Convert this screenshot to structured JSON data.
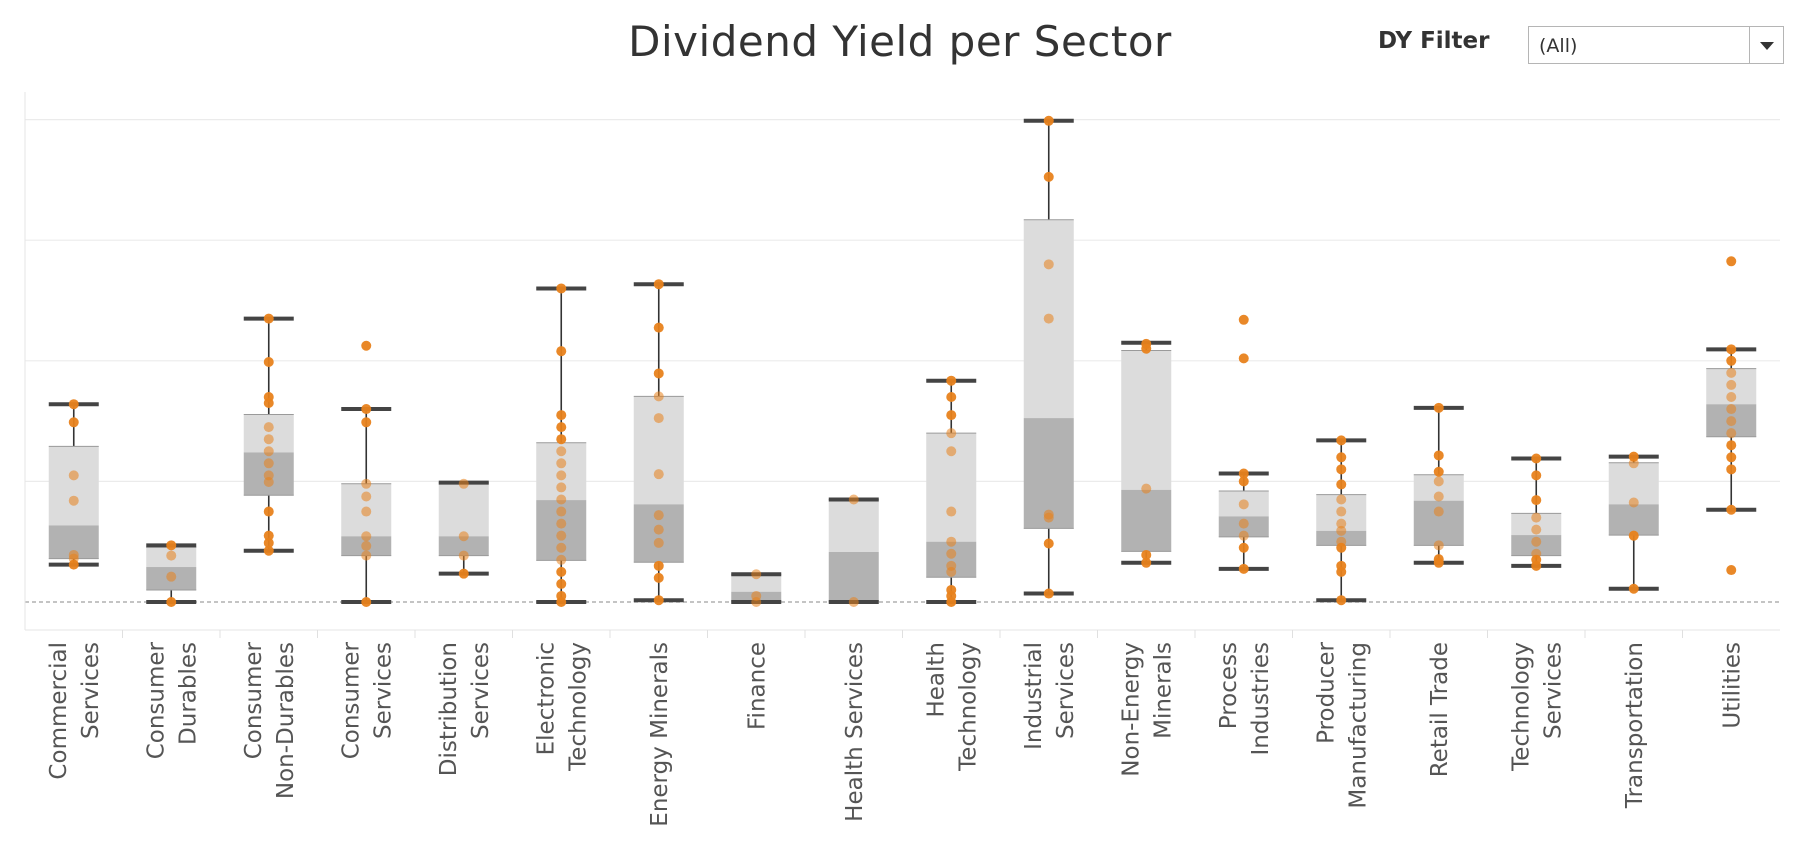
{
  "header": {
    "title": "Dividend Yield per Sector",
    "filter_label": "DY Filter",
    "filter_value": "(All)"
  },
  "colors": {
    "point": "#e8821c",
    "box_upper": "#dcdcdc",
    "box_lower": "#b2b2b2",
    "whisker": "#333333",
    "grid": "#ebebeb"
  },
  "icons": {
    "filter_dropdown": "chevron-down-icon"
  },
  "chart_data": {
    "type": "box",
    "title": "Dividend Yield per Sector",
    "xlabel": "",
    "ylabel": "",
    "ylim": [
      -0.5,
      8.1
    ],
    "grid": true,
    "zero_line": "dashed",
    "categories": [
      {
        "name": "Commercial Services",
        "label_lines": [
          "Commercial",
          "Services"
        ],
        "whisker_low": 0.62,
        "q1": 0.72,
        "median": 1.27,
        "q3": 2.58,
        "whisker_high": 3.28,
        "points": [
          0.62,
          0.72,
          0.78,
          1.68,
          2.1,
          2.98,
          3.28
        ]
      },
      {
        "name": "Consumer Durables",
        "label_lines": [
          "Consumer",
          "Durables"
        ],
        "whisker_low": 0.0,
        "q1": 0.2,
        "median": 0.58,
        "q3": 0.91,
        "whisker_high": 0.94,
        "points": [
          0.0,
          0.42,
          0.77,
          0.94
        ]
      },
      {
        "name": "Consumer Non-Durables",
        "label_lines": [
          "Consumer",
          "Non-Durables"
        ],
        "whisker_low": 0.85,
        "q1": 1.77,
        "median": 2.48,
        "q3": 3.11,
        "whisker_high": 4.7,
        "points": [
          0.85,
          0.98,
          1.1,
          1.5,
          1.99,
          2.1,
          2.3,
          2.5,
          2.7,
          2.9,
          3.3,
          3.4,
          3.98,
          4.7
        ]
      },
      {
        "name": "Consumer Services",
        "label_lines": [
          "Consumer",
          "Services"
        ],
        "whisker_low": 0.0,
        "q1": 0.77,
        "median": 1.09,
        "q3": 1.96,
        "whisker_high": 3.2,
        "points": [
          0.0,
          0.77,
          0.93,
          1.09,
          1.5,
          1.75,
          1.96,
          2.98,
          3.2,
          4.25
        ]
      },
      {
        "name": "Distribution Services",
        "label_lines": [
          "Distribution",
          "Services"
        ],
        "whisker_low": 0.47,
        "q1": 0.77,
        "median": 1.09,
        "q3": 1.98,
        "whisker_high": 1.98,
        "points": [
          0.47,
          0.77,
          1.09,
          1.96
        ]
      },
      {
        "name": "Electronic Technology",
        "label_lines": [
          "Electronic",
          "Technology"
        ],
        "whisker_low": 0.0,
        "q1": 0.69,
        "median": 1.69,
        "q3": 2.64,
        "whisker_high": 5.2,
        "points": [
          0.0,
          0.1,
          0.3,
          0.5,
          0.7,
          0.9,
          1.1,
          1.3,
          1.5,
          1.7,
          1.9,
          2.1,
          2.3,
          2.5,
          2.7,
          2.9,
          3.1,
          4.16,
          5.2
        ]
      },
      {
        "name": "Energy Minerals",
        "label_lines": [
          "Energy Minerals"
        ],
        "whisker_low": 0.03,
        "q1": 0.66,
        "median": 1.62,
        "q3": 3.41,
        "whisker_high": 5.27,
        "points": [
          0.03,
          0.4,
          0.6,
          0.98,
          1.2,
          1.44,
          2.12,
          3.05,
          3.41,
          3.79,
          4.55,
          5.27
        ]
      },
      {
        "name": "Finance",
        "label_lines": [
          "Finance"
        ],
        "whisker_low": 0.0,
        "q1": 0.0,
        "median": 0.17,
        "q3": 0.46,
        "whisker_high": 0.46,
        "points": [
          0.0,
          0.1,
          0.46
        ]
      },
      {
        "name": "Health Services",
        "label_lines": [
          "Health Services"
        ],
        "whisker_low": 0.0,
        "q1": 0.0,
        "median": 0.83,
        "q3": 1.7,
        "whisker_high": 1.7,
        "points": [
          0.0,
          1.7
        ]
      },
      {
        "name": "Health Technology",
        "label_lines": [
          "Health",
          "Technology"
        ],
        "whisker_low": 0.0,
        "q1": 0.41,
        "median": 1.0,
        "q3": 2.8,
        "whisker_high": 3.67,
        "points": [
          0.0,
          0.1,
          0.2,
          0.5,
          0.6,
          0.8,
          1.0,
          1.5,
          2.5,
          2.8,
          3.1,
          3.4,
          3.67
        ]
      },
      {
        "name": "Industrial Services",
        "label_lines": [
          "Industrial",
          "Services"
        ],
        "whisker_low": 0.14,
        "q1": 1.22,
        "median": 3.05,
        "q3": 6.34,
        "whisker_high": 7.98,
        "points": [
          0.14,
          0.97,
          1.4,
          1.45,
          4.7,
          5.6,
          7.05,
          7.98
        ]
      },
      {
        "name": "Non-Energy Minerals",
        "label_lines": [
          "Non-Energy",
          "Minerals"
        ],
        "whisker_low": 0.65,
        "q1": 0.84,
        "median": 1.86,
        "q3": 4.17,
        "whisker_high": 4.3,
        "points": [
          0.65,
          0.78,
          1.88,
          4.2,
          4.28
        ]
      },
      {
        "name": "Process Industries",
        "label_lines": [
          "Process",
          "Industries"
        ],
        "whisker_low": 0.55,
        "q1": 1.08,
        "median": 1.42,
        "q3": 1.84,
        "whisker_high": 2.13,
        "points": [
          0.55,
          0.9,
          1.1,
          1.3,
          1.62,
          2.0,
          2.13,
          4.04,
          4.68
        ]
      },
      {
        "name": "Producer Manufacturing",
        "label_lines": [
          "Producer",
          "Manufacturing"
        ],
        "whisker_low": 0.03,
        "q1": 0.94,
        "median": 1.18,
        "q3": 1.78,
        "whisker_high": 2.68,
        "points": [
          0.03,
          0.5,
          0.6,
          0.9,
          1.0,
          1.18,
          1.3,
          1.5,
          1.7,
          1.95,
          2.2,
          2.4,
          2.68
        ]
      },
      {
        "name": "Retail Trade",
        "label_lines": [
          "Retail Trade"
        ],
        "whisker_low": 0.65,
        "q1": 0.94,
        "median": 1.68,
        "q3": 2.11,
        "whisker_high": 3.22,
        "points": [
          0.65,
          0.71,
          0.94,
          1.5,
          1.75,
          2.0,
          2.16,
          2.43,
          3.22
        ]
      },
      {
        "name": "Technology Services",
        "label_lines": [
          "Technology",
          "Services"
        ],
        "whisker_low": 0.6,
        "q1": 0.77,
        "median": 1.11,
        "q3": 1.47,
        "whisker_high": 2.38,
        "points": [
          0.6,
          0.7,
          0.8,
          1.0,
          1.2,
          1.4,
          1.69,
          2.1,
          2.38
        ]
      },
      {
        "name": "Transportation",
        "label_lines": [
          "Transportation"
        ],
        "whisker_low": 0.22,
        "q1": 1.11,
        "median": 1.62,
        "q3": 2.31,
        "whisker_high": 2.41,
        "points": [
          0.22,
          1.1,
          1.65,
          2.3,
          2.41
        ]
      },
      {
        "name": "Utilities",
        "label_lines": [
          "Utilities"
        ],
        "whisker_low": 1.53,
        "q1": 2.74,
        "median": 3.28,
        "q3": 3.87,
        "whisker_high": 4.19,
        "points": [
          0.53,
          1.53,
          2.2,
          2.4,
          2.6,
          2.8,
          3.0,
          3.2,
          3.4,
          3.6,
          3.8,
          4.0,
          4.19,
          5.65
        ]
      }
    ]
  }
}
